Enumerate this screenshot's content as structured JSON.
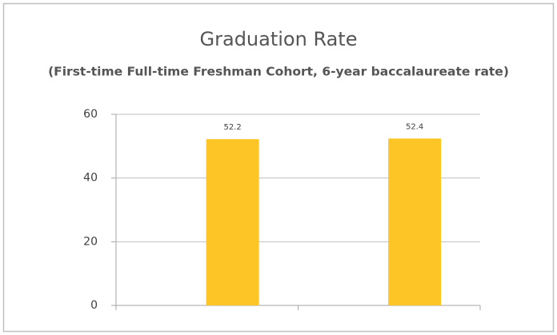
{
  "chart_data": {
    "type": "bar",
    "title": "Graduation Rate",
    "subtitle": "(First-time Full-time Freshman Cohort, 6-year baccalaureate rate)",
    "categories": [
      null,
      null
    ],
    "values": [
      52.2,
      52.4
    ],
    "color": "#fdc526",
    "ylim": [
      0,
      60
    ],
    "yticks": [
      0,
      20,
      40,
      60
    ],
    "grid": true
  }
}
